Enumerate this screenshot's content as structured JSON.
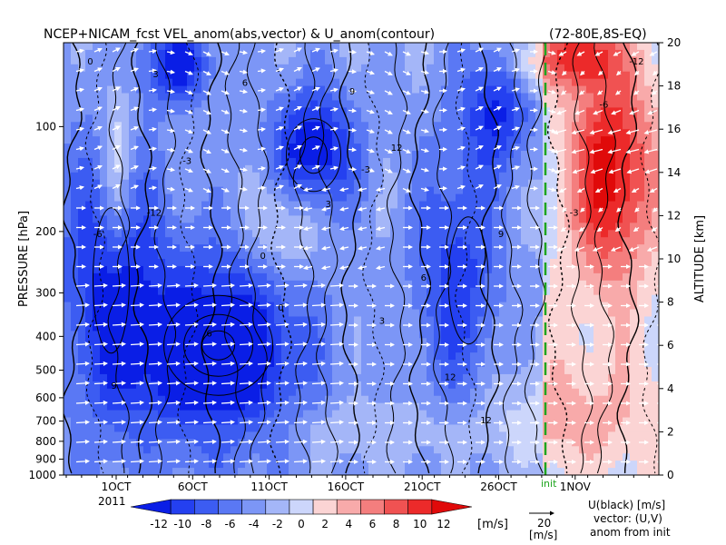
{
  "chart_data": {
    "type": "heatmap",
    "title": "NCEP+NICAM_fcst VEL_anom(abs,vector) & U_anom(contour)",
    "region": "(72-80E,8S-EQ)",
    "ylabel_left": "PRESSURE [hPa]",
    "ylabel_right": "ALTITUDE [km]",
    "pressure_ticks": [
      100,
      200,
      300,
      400,
      500,
      600,
      700,
      800,
      900,
      1000
    ],
    "altitude_ticks": [
      0,
      2,
      4,
      6,
      8,
      10,
      12,
      14,
      16,
      18,
      20
    ],
    "x_ticks": [
      "1OCT",
      "6OCT",
      "11OCT",
      "16OCT",
      "21OCT",
      "26OCT",
      "1NOV"
    ],
    "x_year": "2011",
    "init_label": "init",
    "colorbar": {
      "labels": [
        "-12",
        "-10",
        "-8",
        "-6",
        "-4",
        "-2",
        "0",
        "2",
        "4",
        "6",
        "8",
        "10",
        "12"
      ],
      "unit": "[m/s]",
      "colors": [
        "#0a1ee6",
        "#2440f0",
        "#3c5cf2",
        "#5a78f4",
        "#7c96f6",
        "#a4b6f8",
        "#ccd6fb",
        "#fbd4d4",
        "#f8aaaa",
        "#f47e7e",
        "#f05252",
        "#ec2a2a",
        "#e00a0a"
      ]
    },
    "vector_ref": {
      "value": "20",
      "unit": "[m/s]"
    },
    "legend_lines": [
      "U(black) [m/s]",
      "vector: (U,V)",
      "anom from init"
    ],
    "contour_labels": [
      "0",
      "3",
      "6",
      "9",
      "12",
      "-3",
      "-6",
      "-12"
    ],
    "colors": {
      "negative": "#2a3ff0",
      "positive": "#e8242a",
      "init_line": "#1fa51f"
    }
  }
}
